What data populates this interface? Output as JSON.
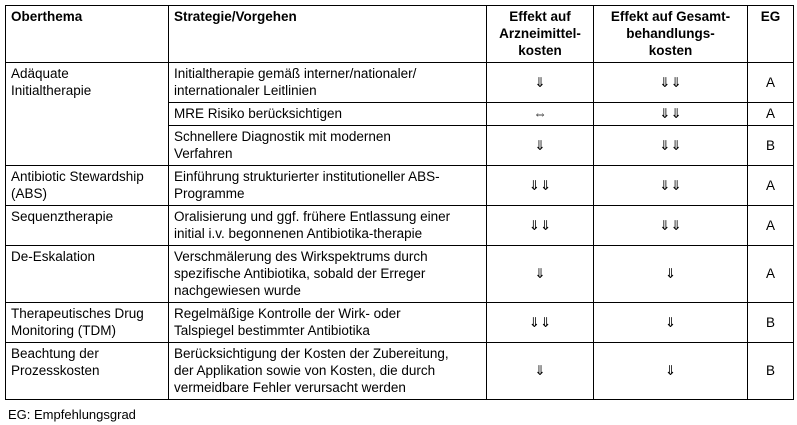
{
  "colors": {
    "background": "#ffffff",
    "border": "#000000",
    "text": "#000000"
  },
  "table": {
    "columns": [
      {
        "key": "oberthema",
        "label": "Oberthema"
      },
      {
        "key": "strategie",
        "label": "Strategie/Vorgehen"
      },
      {
        "key": "arzneimittelkosten",
        "label": "Effekt auf\nArzneimittel-\nkosten"
      },
      {
        "key": "gesamtkosten",
        "label": "Effekt auf Gesamt-\nbehandlungs-\nkosten"
      },
      {
        "key": "eg",
        "label": "EG"
      }
    ],
    "rows": [
      {
        "oberthema": "Adäquate\nInitialtherapie",
        "oberthema_rowspan": 3,
        "strategie": "Initialtherapie gemäß interner/nationaler/\ninternationaler Leitlinien",
        "arzneimittelkosten": "⇓",
        "gesamtkosten": "⇓⇓",
        "eg": "A"
      },
      {
        "strategie": "MRE Risiko berücksichtigen",
        "arzneimittelkosten": "⇔",
        "gesamtkosten": "⇓⇓",
        "eg": "A"
      },
      {
        "strategie": "Schnellere Diagnostik mit modernen\nVerfahren",
        "arzneimittelkosten": "⇓",
        "gesamtkosten": "⇓⇓",
        "eg": "B"
      },
      {
        "oberthema": "Antibiotic Stewardship\n(ABS)",
        "oberthema_rowspan": 1,
        "strategie": "Einführung strukturierter institutioneller ABS-\nProgramme",
        "arzneimittelkosten": "⇓⇓",
        "gesamtkosten": "⇓⇓",
        "eg": "A"
      },
      {
        "oberthema": "Sequenztherapie",
        "oberthema_rowspan": 1,
        "strategie": "Oralisierung und ggf. frühere Entlassung einer\ninitial i.v. begonnenen Antibiotika-therapie",
        "arzneimittelkosten": "⇓⇓",
        "gesamtkosten": "⇓⇓",
        "eg": "A"
      },
      {
        "oberthema": "De-Eskalation",
        "oberthema_rowspan": 1,
        "strategie": "Verschmälerung des Wirkspektrums durch\nspezifische Antibiotika, sobald der Erreger\nnachgewiesen wurde",
        "arzneimittelkosten": "⇓",
        "gesamtkosten": "⇓",
        "eg": "A"
      },
      {
        "oberthema": "Therapeutisches Drug\nMonitoring (TDM)",
        "oberthema_rowspan": 1,
        "strategie": "Regelmäßige Kontrolle der Wirk- oder\nTalspiegel bestimmter Antibiotika",
        "arzneimittelkosten": "⇓⇓",
        "gesamtkosten": "⇓",
        "eg": "B"
      },
      {
        "oberthema": "Beachtung der\nProzesskosten",
        "oberthema_rowspan": 1,
        "strategie": "Berücksichtigung der Kosten der Zubereitung,\nder Applikation sowie von Kosten, die durch\nvermeidbare Fehler verursacht werden",
        "arzneimittelkosten": "⇓",
        "gesamtkosten": "⇓",
        "eg": "B"
      }
    ]
  },
  "legend": {
    "text": "EG: Empfehlungsgrad"
  }
}
